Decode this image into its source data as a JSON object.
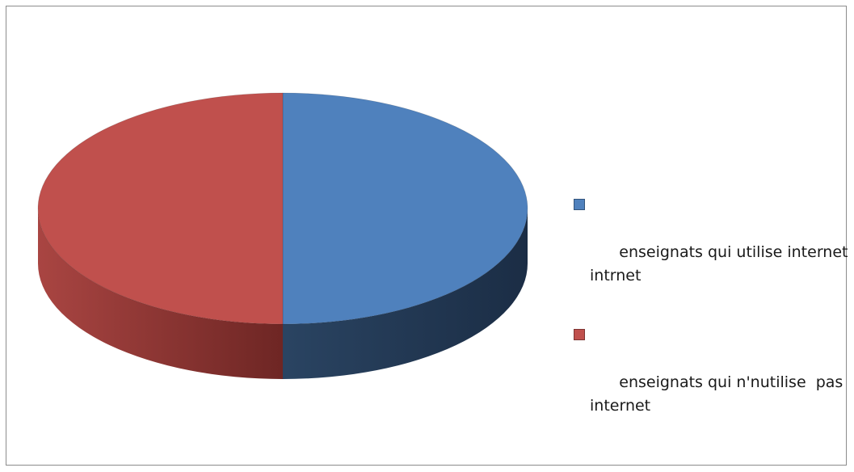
{
  "chart_data": {
    "type": "pie",
    "style": "3d",
    "title": "",
    "slices": [
      {
        "label": "enseignats qui utilise internet  intrnet",
        "value": 50,
        "color": "#4f81bd"
      },
      {
        "label": "enseignats qui n'nutilise  pas internet",
        "value": 50,
        "color": "#c0504d"
      }
    ],
    "legend_position": "right"
  }
}
